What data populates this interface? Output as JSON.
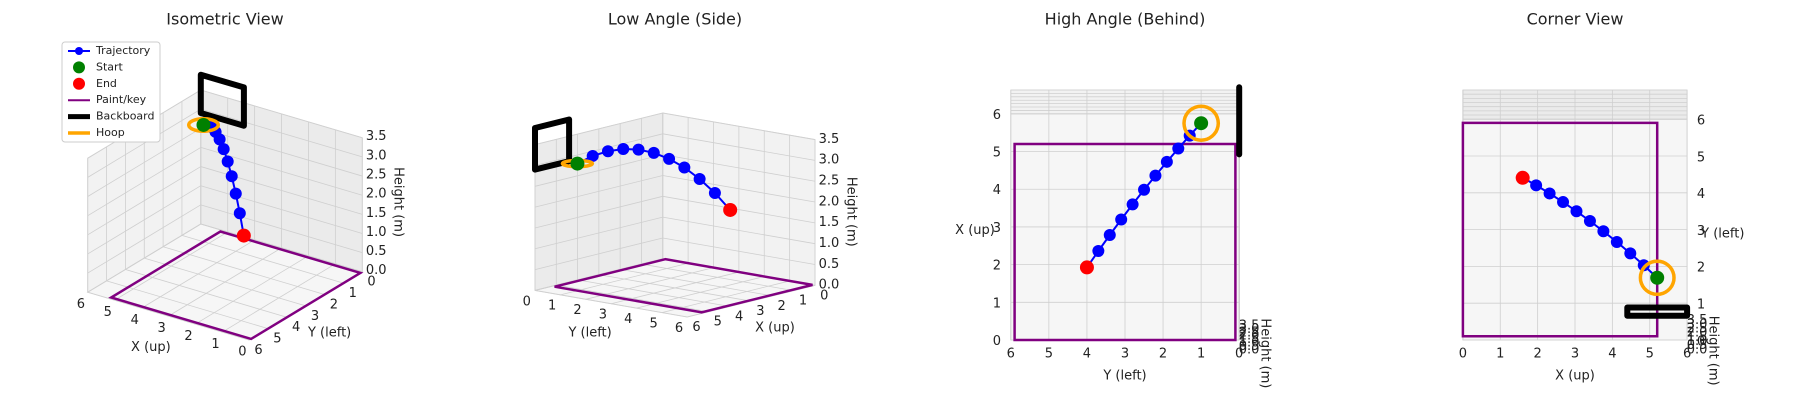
{
  "chart_data": [
    {
      "type": "line3d",
      "title": "Isometric View",
      "elev": 25,
      "azim": 125,
      "legend": "upper left"
    },
    {
      "type": "line3d",
      "title": "Low Angle (Side)",
      "elev": 12,
      "azim": 40
    },
    {
      "type": "line3d",
      "title": "High Angle (Behind)",
      "elev": 82,
      "azim": 180
    },
    {
      "type": "line3d",
      "title": "Corner View",
      "elev": 80,
      "azim": -90
    }
  ],
  "scene": {
    "xlabel": "X (up)",
    "ylabel": "Y (left)",
    "zlabel": "Height (m)",
    "xlim": [
      0,
      6
    ],
    "ylim": [
      0,
      6
    ],
    "zlim": [
      0,
      3.5
    ],
    "xticks": [
      0,
      1,
      2,
      3,
      4,
      5,
      6
    ],
    "yticks": [
      0,
      1,
      2,
      3,
      4,
      5,
      6
    ],
    "zticks": [
      {
        "value": 0,
        "label": "0.0"
      },
      0.5,
      {
        "value": 1,
        "label": "1.0"
      },
      1.5,
      {
        "value": 2,
        "label": "2.0"
      },
      2.5,
      {
        "value": 3,
        "label": "3.0"
      },
      3.5
    ],
    "trajectory": {
      "name": "Trajectory",
      "color": "#0000ff",
      "x": [
        5.2,
        4.84,
        4.48,
        4.12,
        3.76,
        3.4,
        3.04,
        2.68,
        2.32,
        1.96,
        1.6
      ],
      "y": [
        1,
        1.3,
        1.6,
        1.9,
        2.2,
        2.5,
        2.8,
        3.1,
        3.4,
        3.7,
        4
      ],
      "z": [
        3.05,
        3.22,
        3.32,
        3.36,
        3.33,
        3.24,
        3.08,
        2.86,
        2.57,
        2.22,
        1.8
      ]
    },
    "start": {
      "name": "Start",
      "color": "#008000",
      "x": 5.2,
      "y": 1,
      "z": 3.05
    },
    "end": {
      "name": "End",
      "color": "#ff0000",
      "x": 1.6,
      "y": 4,
      "z": 1.8
    },
    "paint": {
      "name": "Paint/key",
      "color": "#800080",
      "x": [
        0,
        5.2,
        5.2,
        0
      ],
      "y": [
        0.1,
        0.1,
        5.9,
        5.9
      ],
      "z": [
        0,
        0,
        0,
        0
      ]
    },
    "backboard": {
      "name": "Backboard",
      "color": "#000000",
      "x": [
        4.4,
        6,
        6,
        4.4
      ],
      "y": [
        0,
        0,
        0,
        0
      ],
      "z": [
        2.9,
        2.9,
        3.9,
        3.9
      ]
    },
    "hoop": {
      "name": "Hoop",
      "color": "#ffa500",
      "center": [
        5.2,
        1,
        3.05
      ],
      "radius": 0.45
    }
  }
}
